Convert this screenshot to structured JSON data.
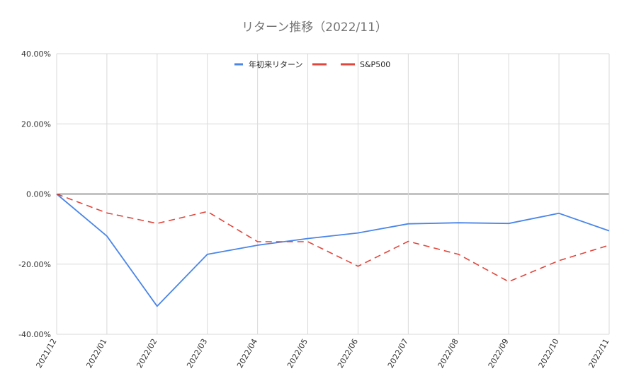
{
  "chart_data": {
    "type": "line",
    "title": "リターン推移（2022/11）",
    "categories": [
      "2021/12",
      "2022/01",
      "2022/02",
      "2022/03",
      "2022/04",
      "2022/05",
      "2022/06",
      "2022/07",
      "2022/08",
      "2022/09",
      "2022/10",
      "2022/11"
    ],
    "ylim": [
      -40,
      40
    ],
    "y_ticks": [
      40,
      20,
      0,
      -20,
      -40
    ],
    "y_tick_labels": [
      "40.00%",
      "20.00%",
      "0.00%",
      "-20.00%",
      "-40.00%"
    ],
    "grid": true,
    "legend_position": "top-center",
    "series": [
      {
        "name": "年初来リターン",
        "color": "#4a86e8",
        "line_style": "solid",
        "values": [
          0,
          -12.0,
          -32.0,
          -17.2,
          -14.6,
          -12.7,
          -11.1,
          -8.5,
          -8.2,
          -8.4,
          -5.5,
          -10.5
        ]
      },
      {
        "name": "S&P500",
        "color": "#e0463c",
        "line_style": "dashed",
        "values": [
          0,
          -5.4,
          -8.4,
          -5.0,
          -13.6,
          -13.6,
          -20.6,
          -13.5,
          -17.2,
          -25.0,
          -19.0,
          -14.6
        ]
      }
    ]
  }
}
